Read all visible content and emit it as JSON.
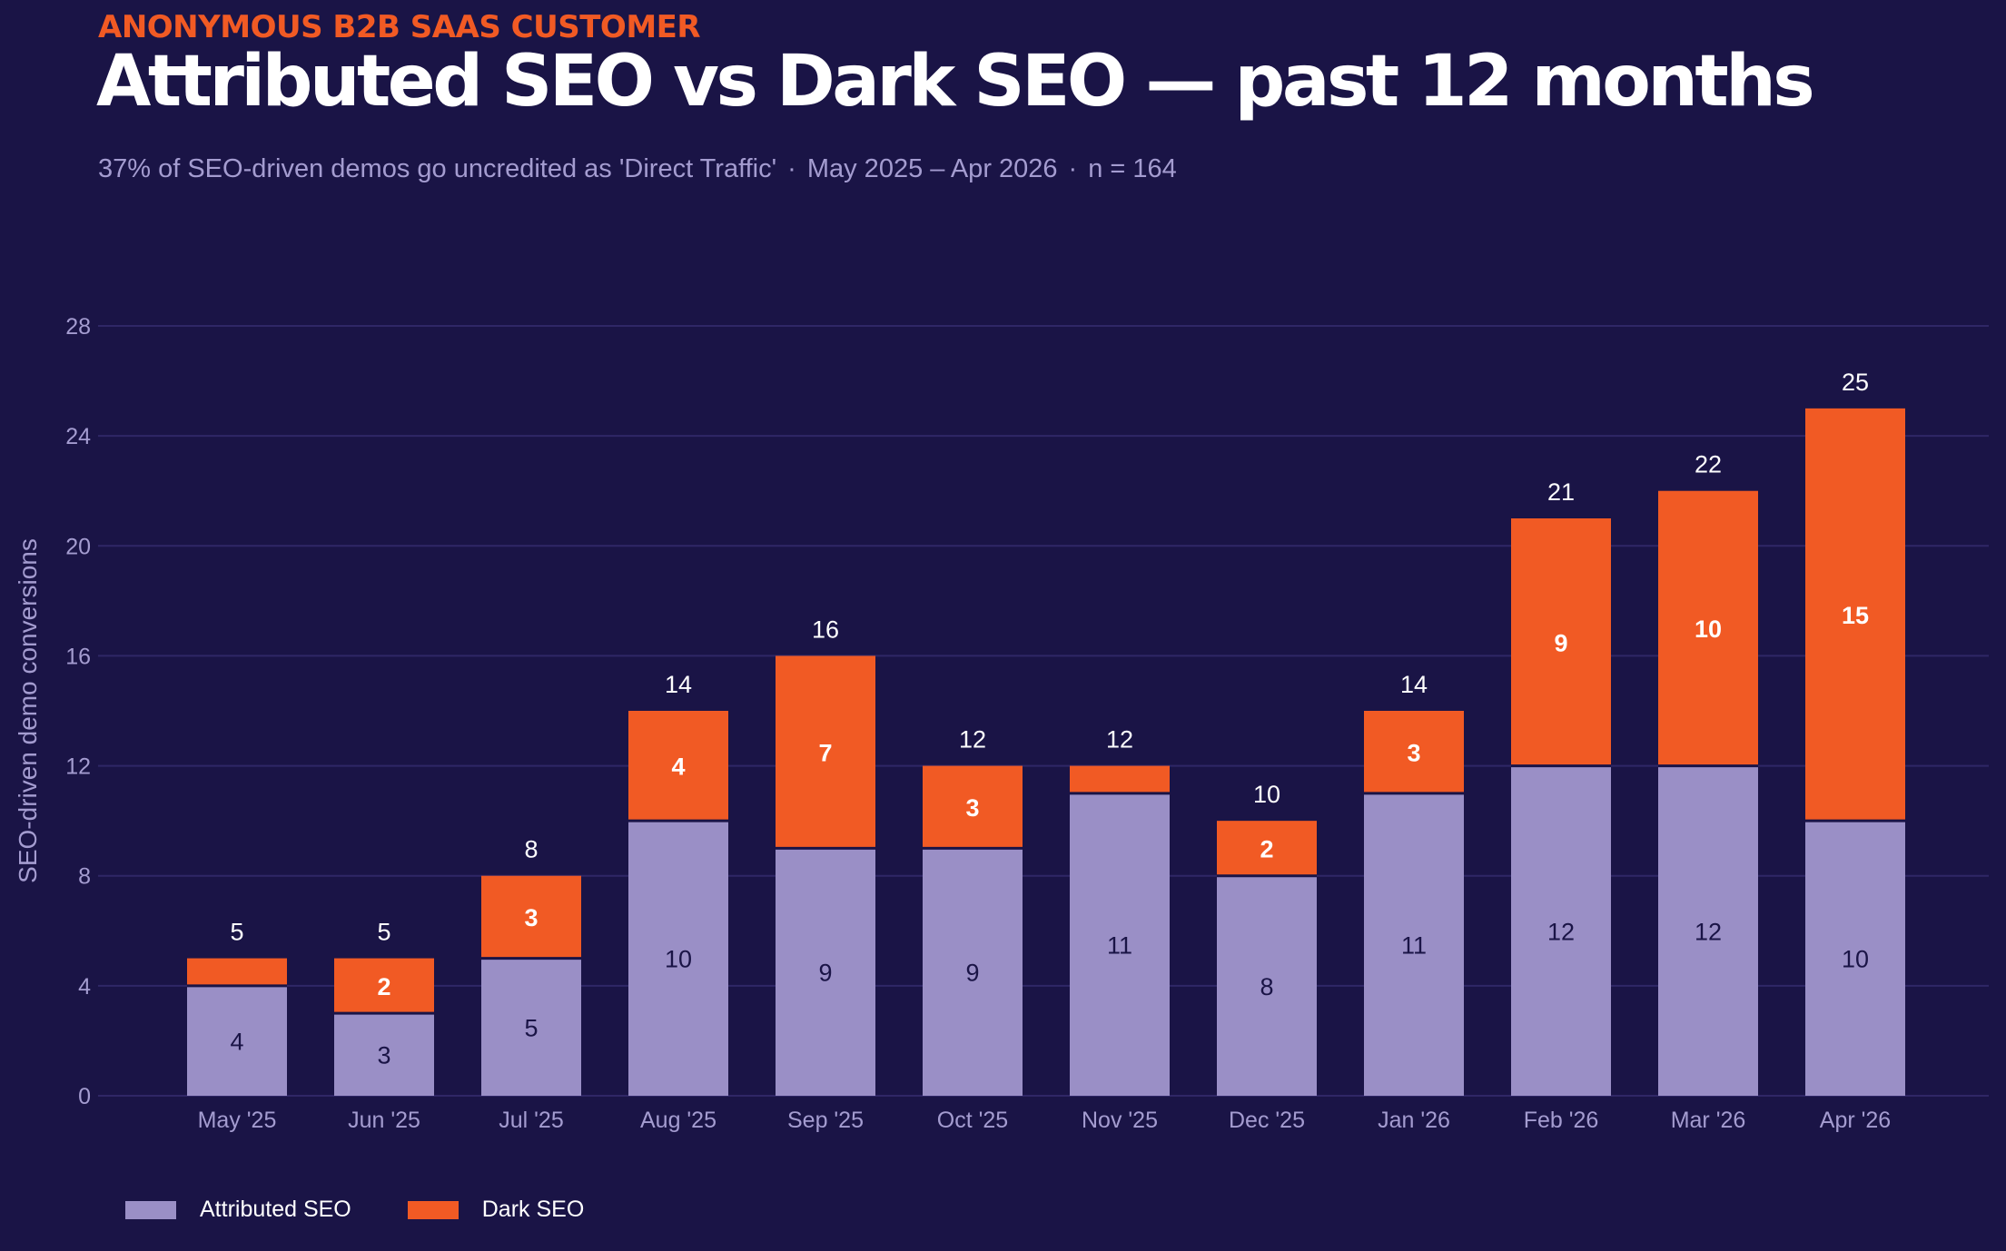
{
  "header": {
    "kicker": "ANONYMOUS B2B SAAS CUSTOMER",
    "title": "Attributed SEO vs Dark SEO — past 12 months",
    "subtitle_parts": [
      "37% of SEO-driven demos go uncredited as 'Direct Traffic'",
      "May 2025 – Apr 2026",
      "n = 164"
    ],
    "subtitle_separator": "·"
  },
  "colors": {
    "background": "#1a1446",
    "attributed": "#9a8fc6",
    "dark": "#f15a24",
    "grid": "#2f2766",
    "axis_text": "#a49cd0",
    "inner_label_on_attributed": "#1a1446",
    "inner_label_on_dark": "#ffffff",
    "total_label": "#ffffff"
  },
  "chart_data": {
    "type": "bar",
    "stacked": true,
    "categories": [
      "May '25",
      "Jun '25",
      "Jul '25",
      "Aug '25",
      "Sep '25",
      "Oct '25",
      "Nov '25",
      "Dec '25",
      "Jan '26",
      "Feb '26",
      "Mar '26",
      "Apr '26"
    ],
    "series": [
      {
        "name": "Attributed SEO",
        "values": [
          4,
          3,
          5,
          10,
          9,
          9,
          11,
          8,
          11,
          12,
          12,
          10
        ]
      },
      {
        "name": "Dark SEO",
        "values": [
          1,
          2,
          3,
          4,
          7,
          3,
          1,
          2,
          3,
          9,
          10,
          15
        ]
      }
    ],
    "totals": [
      5,
      5,
      8,
      14,
      16,
      12,
      12,
      10,
      14,
      21,
      22,
      25
    ],
    "dark_label_min": 2,
    "ylabel": "SEO-driven demo conversions",
    "ylim": [
      0,
      28
    ],
    "yticks": [
      0,
      4,
      8,
      12,
      16,
      20,
      24,
      28
    ],
    "grid": true,
    "legend_position": "bottom-left"
  }
}
